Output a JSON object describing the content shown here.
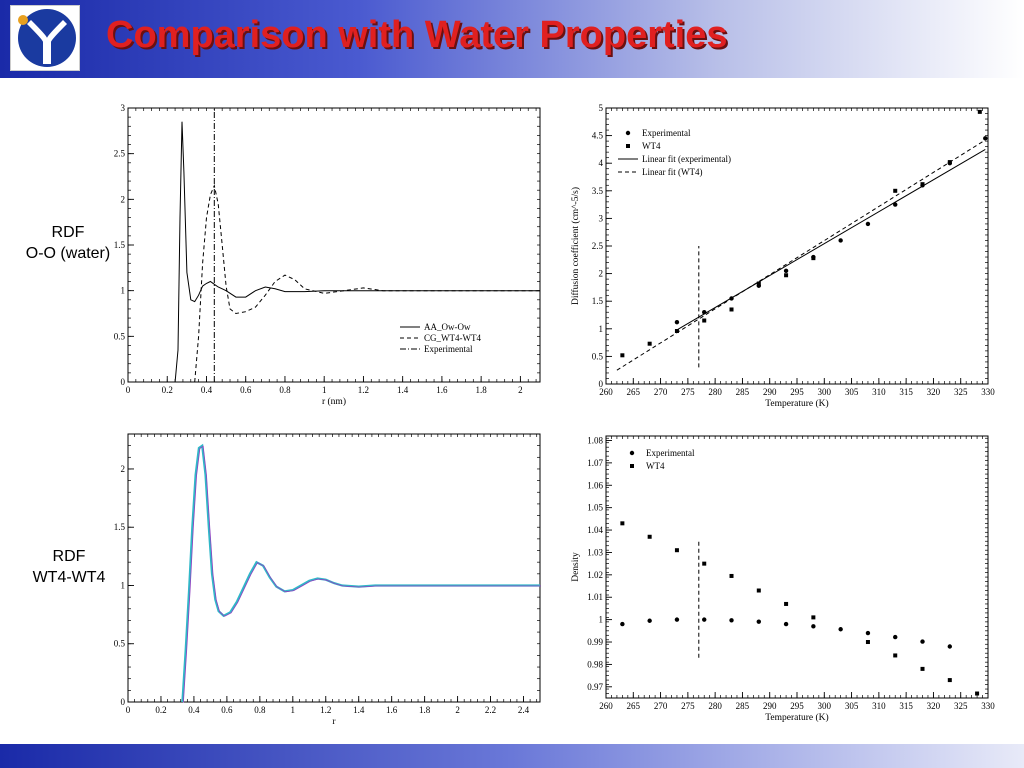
{
  "header": {
    "title": "Comparison with Water Properties",
    "colors": {
      "title": "#e02020",
      "banner_start": "#1a2aa8",
      "banner_end": "#ffffff"
    }
  },
  "labels": {
    "rdf_oo": {
      "line1": "RDF",
      "line2": "O-O (water)"
    },
    "rdf_wt4": {
      "line1": "RDF",
      "line2": "WT4-WT4"
    }
  },
  "chart_data": [
    {
      "id": "rdf-oo",
      "type": "line",
      "xlabel": "r (nm)",
      "ylabel": "",
      "xlim": [
        0,
        2.1
      ],
      "ylim": [
        0,
        3
      ],
      "xticks": [
        "0",
        "0.2",
        "0.4",
        "0.6",
        "0.8",
        "1",
        "1.2",
        "1.4",
        "1.6",
        "1.8",
        "2"
      ],
      "yticks": [
        "0",
        "0.5",
        "1",
        "1.5",
        "2",
        "2.5",
        "3"
      ],
      "legend": "bottom-right",
      "series": [
        {
          "name": "AA_Ow-Ow",
          "style": "solid",
          "x": [
            0.24,
            0.255,
            0.265,
            0.275,
            0.285,
            0.3,
            0.32,
            0.34,
            0.36,
            0.38,
            0.4,
            0.42,
            0.44,
            0.46,
            0.48,
            0.5,
            0.55,
            0.6,
            0.65,
            0.7,
            0.75,
            0.8,
            0.9,
            1.0,
            1.2,
            1.5,
            2.1
          ],
          "y": [
            0,
            0.35,
            1.8,
            2.85,
            2.3,
            1.2,
            0.9,
            0.88,
            0.95,
            1.05,
            1.08,
            1.1,
            1.07,
            1.04,
            1.02,
            1.0,
            0.93,
            0.93,
            1.0,
            1.04,
            1.02,
            0.99,
            0.99,
            1.0,
            1.0,
            1.0,
            1.0
          ]
        },
        {
          "name": "CG_WT4-WT4",
          "style": "dashed",
          "x": [
            0.34,
            0.36,
            0.38,
            0.4,
            0.42,
            0.44,
            0.46,
            0.48,
            0.5,
            0.52,
            0.55,
            0.6,
            0.65,
            0.7,
            0.75,
            0.8,
            0.85,
            0.9,
            1.0,
            1.1,
            1.2,
            1.3,
            1.5,
            2.1
          ],
          "y": [
            0,
            0.5,
            1.3,
            1.8,
            2.05,
            2.15,
            1.95,
            1.5,
            1.05,
            0.8,
            0.75,
            0.77,
            0.82,
            0.95,
            1.1,
            1.17,
            1.12,
            1.02,
            0.97,
            1.0,
            1.03,
            1.0,
            1.0,
            1.0
          ]
        },
        {
          "name": "Experimental",
          "style": "dashdot",
          "x": [
            0.44,
            0.44
          ],
          "y": [
            0,
            3
          ]
        }
      ]
    },
    {
      "id": "diffusion",
      "type": "scatter",
      "xlabel": "Temperature (K)",
      "ylabel": "Diffusion coefficient (cm^-5/s)",
      "xlim": [
        260,
        330
      ],
      "ylim": [
        0,
        5
      ],
      "xticks": [
        "260",
        "265",
        "270",
        "275",
        "280",
        "285",
        "290",
        "295",
        "300",
        "305",
        "310",
        "315",
        "320",
        "325",
        "330"
      ],
      "yticks": [
        "0",
        "0.5",
        "1",
        "1.5",
        "2",
        "2.5",
        "3",
        "3.5",
        "4",
        "4.5",
        "5"
      ],
      "legend": "top-left",
      "series": [
        {
          "name": "Experimental",
          "marker": "circle",
          "x": [
            273,
            278,
            283,
            288,
            293,
            298,
            303,
            308,
            313,
            318,
            323,
            329.5
          ],
          "y": [
            1.12,
            1.3,
            1.55,
            1.78,
            2.05,
            2.3,
            2.6,
            2.9,
            3.25,
            3.6,
            4.0,
            4.45
          ]
        },
        {
          "name": "WT4",
          "marker": "square",
          "x": [
            263,
            268,
            273,
            278,
            283,
            288,
            293,
            298,
            313,
            318,
            323,
            328.5
          ],
          "y": [
            0.52,
            0.73,
            0.96,
            1.15,
            1.35,
            1.82,
            1.97,
            2.28,
            3.5,
            3.62,
            4.02,
            4.93
          ]
        },
        {
          "name": "Linear fit (experimental)",
          "style": "solid",
          "x": [
            273,
            329.5
          ],
          "y": [
            0.98,
            4.25
          ]
        },
        {
          "name": "Linear fit (WT4)",
          "style": "dashed",
          "x": [
            262,
            329.5
          ],
          "y": [
            0.25,
            4.42
          ]
        },
        {
          "name": "",
          "style": "dashed",
          "x": [
            277,
            277
          ],
          "y": [
            0.3,
            2.5
          ]
        }
      ]
    },
    {
      "id": "rdf-wt4",
      "type": "line",
      "xlabel": "r",
      "ylabel": "",
      "xlim": [
        0,
        2.5
      ],
      "ylim": [
        0,
        2.3
      ],
      "xticks": [
        "0",
        "0.2",
        "0.4",
        "0.6",
        "0.8",
        "1",
        "1.2",
        "1.4",
        "1.6",
        "1.8",
        "2",
        "2.2",
        "2.4"
      ],
      "yticks": [
        "0",
        "0.5",
        "1",
        "1.5",
        "2"
      ],
      "series": [
        {
          "name": "",
          "color": "#30b8c8",
          "x": [
            0.33,
            0.35,
            0.37,
            0.39,
            0.41,
            0.43,
            0.45,
            0.47,
            0.49,
            0.51,
            0.53,
            0.55,
            0.58,
            0.62,
            0.66,
            0.7,
            0.74,
            0.78,
            0.82,
            0.86,
            0.9,
            0.95,
            1.0,
            1.05,
            1.1,
            1.15,
            1.2,
            1.25,
            1.3,
            1.4,
            1.5,
            1.7,
            2.0,
            2.5
          ],
          "y": [
            0,
            0.45,
            0.95,
            1.5,
            1.95,
            2.18,
            2.2,
            1.95,
            1.5,
            1.1,
            0.88,
            0.78,
            0.74,
            0.77,
            0.86,
            0.98,
            1.1,
            1.2,
            1.17,
            1.07,
            0.99,
            0.95,
            0.96,
            1.0,
            1.04,
            1.06,
            1.05,
            1.02,
            1.0,
            0.99,
            1.0,
            1.0,
            1.0,
            1.0
          ]
        }
      ]
    },
    {
      "id": "density",
      "type": "scatter",
      "xlabel": "Temperature (K)",
      "ylabel": "Density",
      "xlim": [
        260,
        330
      ],
      "ylim": [
        0.965,
        1.082
      ],
      "xticks": [
        "260",
        "265",
        "270",
        "275",
        "280",
        "285",
        "290",
        "295",
        "300",
        "305",
        "310",
        "315",
        "320",
        "325",
        "330"
      ],
      "yticks": [
        "0.97",
        "0.98",
        "0.99",
        "1",
        "1.01",
        "1.02",
        "1.03",
        "1.04",
        "1.05",
        "1.06",
        "1.07",
        "1.08"
      ],
      "legend": "top-left",
      "series": [
        {
          "name": "Experimental",
          "marker": "circle",
          "x": [
            263,
            268,
            273,
            278,
            283,
            288,
            293,
            298,
            303,
            308,
            313,
            318,
            323
          ],
          "y": [
            0.998,
            0.9995,
            1.0,
            1.0,
            0.9997,
            0.9991,
            0.998,
            0.997,
            0.9957,
            0.994,
            0.9922,
            0.9902,
            0.988
          ]
        },
        {
          "name": "WT4",
          "marker": "square",
          "x": [
            263,
            268,
            273,
            278,
            283,
            288,
            293,
            298,
            308,
            313,
            318,
            323,
            328
          ],
          "y": [
            1.043,
            1.037,
            1.031,
            1.025,
            1.0195,
            1.013,
            1.007,
            1.001,
            0.99,
            0.984,
            0.978,
            0.973,
            0.967
          ]
        },
        {
          "name": "",
          "style": "dashed",
          "x": [
            277,
            277
          ],
          "y": [
            0.983,
            1.035
          ]
        }
      ]
    }
  ]
}
